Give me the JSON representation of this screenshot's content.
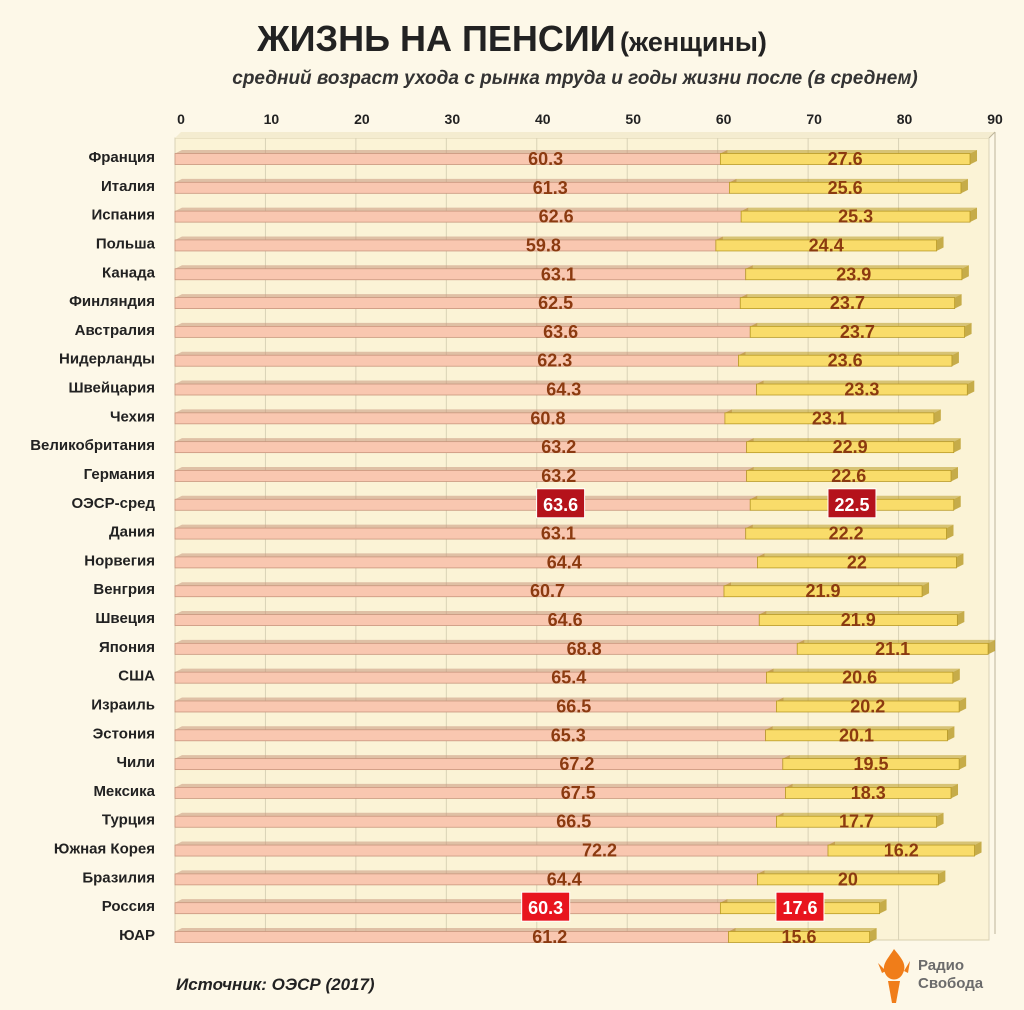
{
  "title": "ЖИЗНЬ НА ПЕНСИИ",
  "title_suffix": "(женщины)",
  "subtitle": "средний возраст ухода с рынка труда и годы жизни после (в среднем)",
  "source": "Источник: ОЭСР (2017)",
  "logo": {
    "line1": "Радио",
    "line2": "Свобода",
    "icon": "torch-flame-icon"
  },
  "colors": {
    "background": "#fdf8e8",
    "age_bar": "#f9c7b0",
    "years_bar": "#f9dc6a",
    "value_text": "#8b3a10",
    "highlight_oecd": "#b5121b",
    "highlight_russia": "#e8141e",
    "logo_orange": "#f07d19"
  },
  "chart_data": {
    "type": "bar",
    "orientation": "horizontal",
    "stacked": true,
    "xlim": [
      0,
      90
    ],
    "xticks": [
      0,
      10,
      20,
      30,
      40,
      50,
      60,
      70,
      80,
      90
    ],
    "grid": true,
    "categories": [
      "Франция",
      "Италия",
      "Испания",
      "Польша",
      "Канада",
      "Финляндия",
      "Австралия",
      "Нидерланды",
      "Швейцария",
      "Чехия",
      "Великобритания",
      "Германия",
      "ОЭСР-сред",
      "Дания",
      "Норвегия",
      "Венгрия",
      "Швеция",
      "Япония",
      "США",
      "Израиль",
      "Эстония",
      "Чили",
      "Мексика",
      "Турция",
      "Южная Корея",
      "Бразилия",
      "Россия",
      "ЮАР"
    ],
    "series": [
      {
        "values": [
          60.3,
          61.3,
          62.6,
          59.8,
          63.1,
          62.5,
          63.6,
          62.3,
          64.3,
          60.8,
          63.2,
          63.2,
          63.6,
          63.1,
          64.4,
          60.7,
          64.6,
          68.8,
          65.4,
          66.5,
          65.3,
          67.2,
          67.5,
          66.5,
          72.2,
          64.4,
          60.3,
          61.2
        ]
      },
      {
        "values": [
          27.6,
          25.6,
          25.3,
          24.4,
          23.9,
          23.7,
          23.7,
          23.6,
          23.3,
          23.1,
          22.9,
          22.6,
          22.5,
          22.2,
          22,
          21.9,
          21.9,
          21.1,
          20.6,
          20.2,
          20.1,
          19.5,
          18.3,
          17.7,
          16.2,
          20,
          17.6,
          15.6
        ]
      }
    ],
    "highlights": [
      {
        "category": "ОЭСР-сред",
        "style": "oecd"
      },
      {
        "category": "Россия",
        "style": "russia"
      }
    ]
  }
}
